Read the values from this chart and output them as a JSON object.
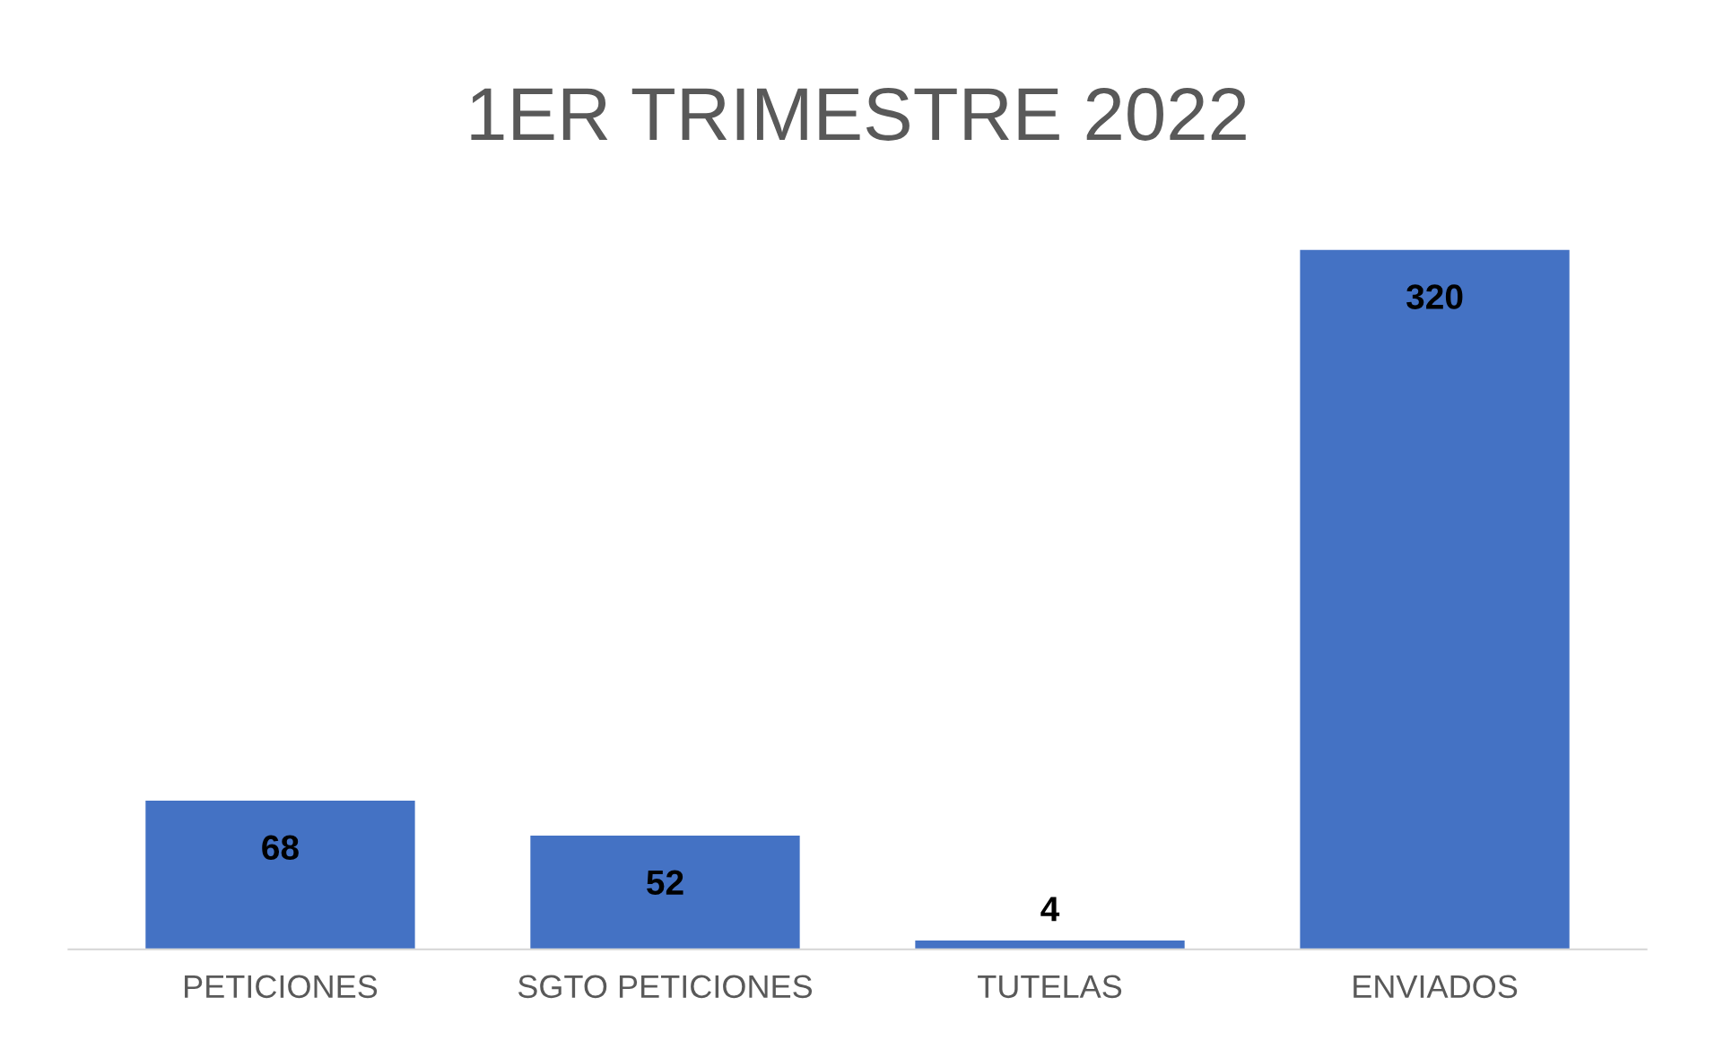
{
  "chart_data": {
    "type": "bar",
    "title": "1ER TRIMESTRE 2022",
    "categories": [
      "PETICIONES",
      "SGTO PETICIONES",
      "TUTELAS",
      "ENVIADOS"
    ],
    "values": [
      68,
      52,
      4,
      320
    ],
    "color": "#4472c4",
    "data_labels": true,
    "grid": false,
    "legend": false
  }
}
